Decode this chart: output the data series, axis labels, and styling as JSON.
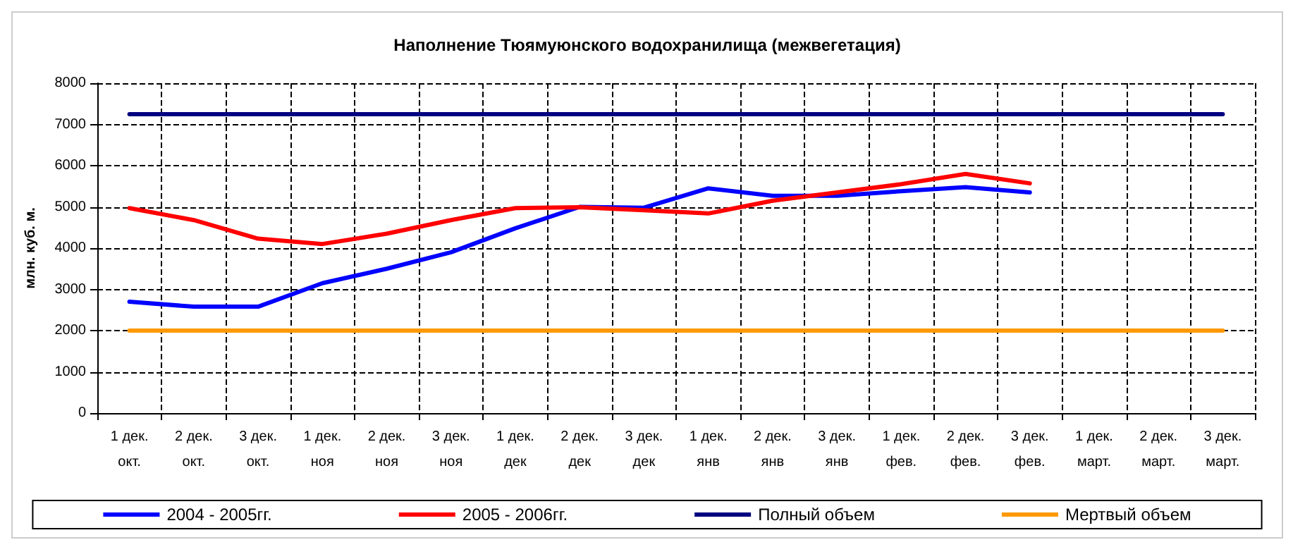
{
  "chart_data": {
    "type": "line",
    "title": "Наполнение Тюямуюнского водохранилища (межвегетация)",
    "ylabel": "млн. куб. м.",
    "categories": [
      "1 дек.\nокт.",
      "2 дек.\nокт.",
      "3 дек.\nокт.",
      "1 дек.\nноя",
      "2 дек.\nноя",
      "3 дек.\nноя",
      "1 дек.\nдек",
      "2 дек.\nдек",
      "3 дек.\nдек",
      "1 дек.\nянв",
      "2 дек.\nянв",
      "3 дек.\nянв",
      "1 дек.\nфев.",
      "2 дек.\nфев.",
      "3 дек.\nфев.",
      "1 дек.\nмарт.",
      "2 дек.\nмарт.",
      "3 дек.\nмарт."
    ],
    "series": [
      {
        "name": "2004 - 2005гг.",
        "color": "#0000ff",
        "values": [
          2700,
          2580,
          2580,
          3150,
          3500,
          3900,
          4480,
          5000,
          4980,
          5450,
          5270,
          5270,
          5380,
          5480,
          5350,
          null,
          null,
          null
        ]
      },
      {
        "name": "2005 - 2006гг.",
        "color": "#ff0000",
        "values": [
          4970,
          4680,
          4230,
          4100,
          4350,
          4680,
          4970,
          4990,
          4920,
          4840,
          5150,
          5350,
          5550,
          5800,
          5570,
          null,
          null,
          null
        ]
      },
      {
        "name": "Полный объем",
        "color": "#000080",
        "values": [
          7250,
          7250,
          7250,
          7250,
          7250,
          7250,
          7250,
          7250,
          7250,
          7250,
          7250,
          7250,
          7250,
          7250,
          7250,
          7250,
          7250,
          7250
        ]
      },
      {
        "name": "Мертвый объем",
        "color": "#ff9900",
        "values": [
          2000,
          2000,
          2000,
          2000,
          2000,
          2000,
          2000,
          2000,
          2000,
          2000,
          2000,
          2000,
          2000,
          2000,
          2000,
          2000,
          2000,
          2000
        ]
      }
    ],
    "ylim": [
      0,
      8000
    ],
    "yticks": [
      0,
      1000,
      2000,
      3000,
      4000,
      5000,
      6000,
      7000,
      8000
    ],
    "grid": true,
    "legend": "bottom",
    "marker": "none",
    "line_style": "solid"
  }
}
